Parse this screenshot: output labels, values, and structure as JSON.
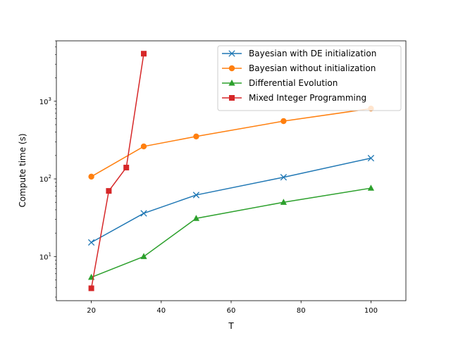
{
  "chart_data": {
    "type": "line",
    "title": "",
    "xlabel": "T",
    "ylabel": "Compute time (s)",
    "xlim": [
      10,
      110
    ],
    "ylim": [
      2.7,
      6000
    ],
    "yscale": "log",
    "xticks": [
      20,
      40,
      60,
      80,
      100
    ],
    "xtick_labels": [
      "20",
      "40",
      "60",
      "80",
      "100"
    ],
    "yticks": [
      10,
      100,
      1000
    ],
    "grid": false,
    "legend_position": "upper-right",
    "series": [
      {
        "name": "Bayesian with DE initialization",
        "color": "#1f77b4",
        "marker": "x",
        "x": [
          20,
          35,
          50,
          75,
          100
        ],
        "y": [
          15.2,
          36,
          62,
          105,
          185
        ]
      },
      {
        "name": "Bayesian without initialization",
        "color": "#ff7f0e",
        "marker": "circle",
        "x": [
          20,
          35,
          50,
          75,
          100
        ],
        "y": [
          107,
          262,
          352,
          555,
          805
        ]
      },
      {
        "name": "Differential Evolution",
        "color": "#2ca02c",
        "marker": "triangle",
        "x": [
          20,
          35,
          50,
          75,
          100
        ],
        "y": [
          5.4,
          10,
          31,
          50,
          76
        ]
      },
      {
        "name": "Mixed Integer Programming",
        "color": "#d62728",
        "marker": "square",
        "x": [
          20,
          25,
          30,
          35
        ],
        "y": [
          3.9,
          70,
          140,
          4100
        ]
      }
    ]
  }
}
